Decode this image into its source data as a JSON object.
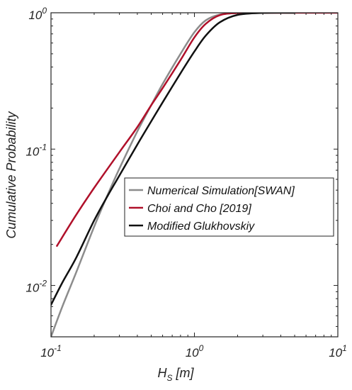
{
  "chart_data": {
    "type": "line",
    "xscale": "log",
    "yscale": "log",
    "xlim": [
      0.1,
      10
    ],
    "ylim": [
      0.0042,
      1
    ],
    "xlabel": {
      "main": "H",
      "sub": "S",
      "rest": " [m]"
    },
    "ylabel": "Cumulative Probability",
    "x_ticks": [
      {
        "value": 0.1,
        "base": "10",
        "exp": "-1"
      },
      {
        "value": 1,
        "base": "10",
        "exp": "0"
      },
      {
        "value": 10,
        "base": "10",
        "exp": "1"
      }
    ],
    "y_ticks": [
      {
        "value": 0.01,
        "base": "10",
        "exp": "-2"
      },
      {
        "value": 0.1,
        "base": "10",
        "exp": "-1"
      },
      {
        "value": 1,
        "base": "10",
        "exp": "0"
      }
    ],
    "grid": false,
    "legend_position": "center-right",
    "series": [
      {
        "name": "Numerical Simulation[SWAN]",
        "color": "#8c8c8c",
        "x": [
          0.1,
          0.12,
          0.15,
          0.2,
          0.25,
          0.3,
          0.4,
          0.5,
          0.6,
          0.8,
          1.0,
          1.2,
          1.5,
          2.0,
          3.0,
          5.0
        ],
        "y": [
          0.0042,
          0.007,
          0.0125,
          0.027,
          0.047,
          0.072,
          0.135,
          0.21,
          0.3,
          0.5,
          0.72,
          0.88,
          0.97,
          0.995,
          1.0,
          1.0
        ]
      },
      {
        "name": "Choi and Cho [2019]",
        "color": "#b0102a",
        "x": [
          0.11,
          0.15,
          0.2,
          0.3,
          0.4,
          0.5,
          0.6,
          0.8,
          1.0,
          1.2,
          1.5,
          2.0,
          3.0,
          5.0,
          10.0
        ],
        "y": [
          0.0195,
          0.033,
          0.052,
          0.095,
          0.145,
          0.21,
          0.28,
          0.45,
          0.66,
          0.83,
          0.96,
          0.995,
          1.0,
          1.0,
          1.0
        ]
      },
      {
        "name": "Modified Glukhovskiy",
        "color": "#111111",
        "x": [
          0.1,
          0.12,
          0.15,
          0.2,
          0.25,
          0.3,
          0.4,
          0.5,
          0.6,
          0.8,
          1.0,
          1.2,
          1.5,
          2.0,
          3.0,
          5.0
        ],
        "y": [
          0.0072,
          0.0105,
          0.016,
          0.03,
          0.046,
          0.064,
          0.108,
          0.16,
          0.22,
          0.36,
          0.52,
          0.68,
          0.85,
          0.965,
          0.998,
          1.0
        ]
      }
    ]
  }
}
